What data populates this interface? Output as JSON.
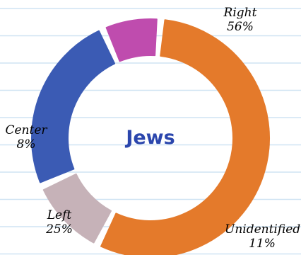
{
  "chart_data": {
    "type": "pie",
    "title": "Jews",
    "slices": [
      {
        "label": "Right",
        "value": 56,
        "display": "56%",
        "color": "#e47a2b"
      },
      {
        "label": "Unidentified",
        "value": 11,
        "display": "11%",
        "color": "#c6b2b8"
      },
      {
        "label": "Left",
        "value": 25,
        "display": "25%",
        "color": "#3b5bb4"
      },
      {
        "label": "Center",
        "value": 8,
        "display": "8%",
        "color": "#bf4cae"
      }
    ],
    "legend": "none",
    "background_lines_color": "#cfe3f3"
  }
}
